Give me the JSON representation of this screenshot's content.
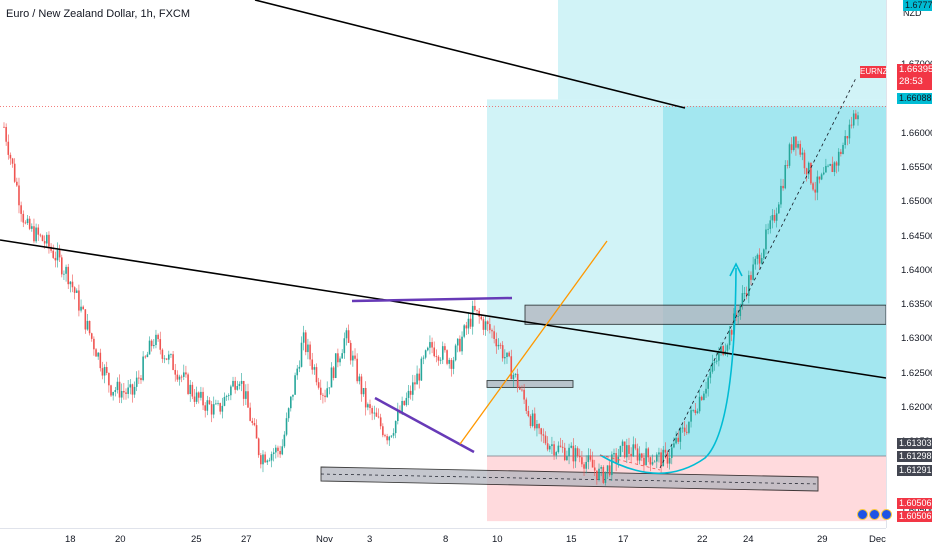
{
  "header": {
    "title": "Euro / New Zealand Dollar, 1h, FXCM"
  },
  "price_axis": {
    "currency": "NZD",
    "ticks": [
      "1.67000",
      "1.66500",
      "1.66000",
      "1.65500",
      "1.65000",
      "1.64500",
      "1.64000",
      "1.63500",
      "1.63000",
      "1.62500",
      "1.62000",
      "1.61500",
      "1.60500"
    ],
    "top_partial": "1.67777"
  },
  "price_tags": {
    "symbol": "EURNZD",
    "current_price": "1.66395",
    "countdown": "28:53",
    "target": "1.66088",
    "entry_upper": "1.61303",
    "entry_mid": "1.61298",
    "entry_lower": "1.61291",
    "stop_upper": "1.60506",
    "stop_lower": "1.60506"
  },
  "time_axis": {
    "labels": [
      "18",
      "20",
      "25",
      "27",
      "Nov",
      "3",
      "8",
      "10",
      "15",
      "17",
      "22",
      "24",
      "29",
      "Dec"
    ]
  },
  "colors": {
    "bull": "#26a69a",
    "bear": "#ef5350",
    "target_zone": "#b2ebf2",
    "stop_zone": "#ffcdd2",
    "trendline": "#000000",
    "wedge": "#673ab7",
    "channel": "#ff9800",
    "arc": "#00bcd4"
  },
  "chart_data": {
    "type": "candlestick",
    "title": "Euro / New Zealand Dollar, 1h, FXCM",
    "ylabel": "NZD",
    "ylim": [
      1.6025,
      1.6795
    ],
    "close_path": [
      [
        "18",
        1.661
      ],
      [
        "",
        1.6465
      ],
      [
        "",
        1.644
      ],
      [
        "",
        1.6395
      ],
      [
        "20",
        1.631
      ],
      [
        "",
        1.623
      ],
      [
        "",
        1.622
      ],
      [
        "",
        1.63
      ],
      [
        "25",
        1.626
      ],
      [
        "",
        1.6215
      ],
      [
        "27",
        1.6195
      ],
      [
        "",
        1.625
      ],
      [
        "",
        1.613
      ],
      [
        "Nov",
        1.614
      ],
      [
        "3",
        1.63
      ],
      [
        "",
        1.622
      ],
      [
        "",
        1.6305
      ],
      [
        "",
        1.62
      ],
      [
        "8",
        1.616
      ],
      [
        "",
        1.622
      ],
      [
        "10",
        1.629
      ],
      [
        "",
        1.627
      ],
      [
        "",
        1.634
      ],
      [
        "",
        1.6305
      ],
      [
        "15",
        1.624
      ],
      [
        "",
        1.616
      ],
      [
        "17",
        1.614
      ],
      [
        "",
        1.613
      ],
      [
        "",
        1.61
      ],
      [
        "",
        1.614
      ],
      [
        "22",
        1.613
      ],
      [
        "",
        1.6125
      ],
      [
        "24",
        1.6175
      ],
      [
        "",
        1.6245
      ],
      [
        "",
        1.631
      ],
      [
        "",
        1.6395
      ],
      [
        "",
        1.647
      ],
      [
        "",
        1.66
      ],
      [
        "29",
        1.652
      ],
      [
        "",
        1.656
      ],
      [
        "Dec",
        1.664
      ]
    ],
    "levels": {
      "target": 1.66088,
      "current": 1.66395,
      "entry": 1.61298,
      "stop": 1.60506
    }
  }
}
